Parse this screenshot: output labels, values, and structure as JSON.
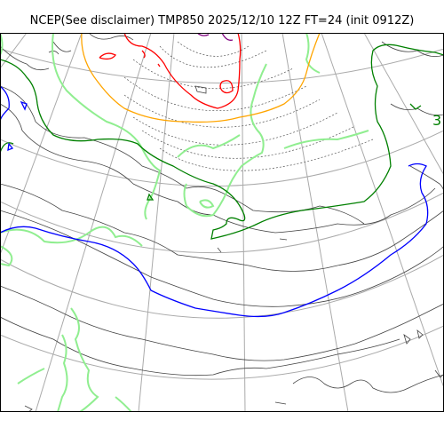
{
  "title": "NCEP(See disclaimer) TMP850 2025/12/10 12Z FT=24 (init 0912Z)",
  "labels": {
    "contour_label_right": "3"
  },
  "colors": {
    "background": "#ffffff",
    "graticule": "#aaaaaa",
    "coastline": "#444444",
    "dotted_contour": "#555555",
    "light_green": "#90ee90",
    "dark_green": "#008000",
    "blue": "#0000ff",
    "red": "#ff0000",
    "orange": "#ffa500",
    "purple": "#800080"
  }
}
